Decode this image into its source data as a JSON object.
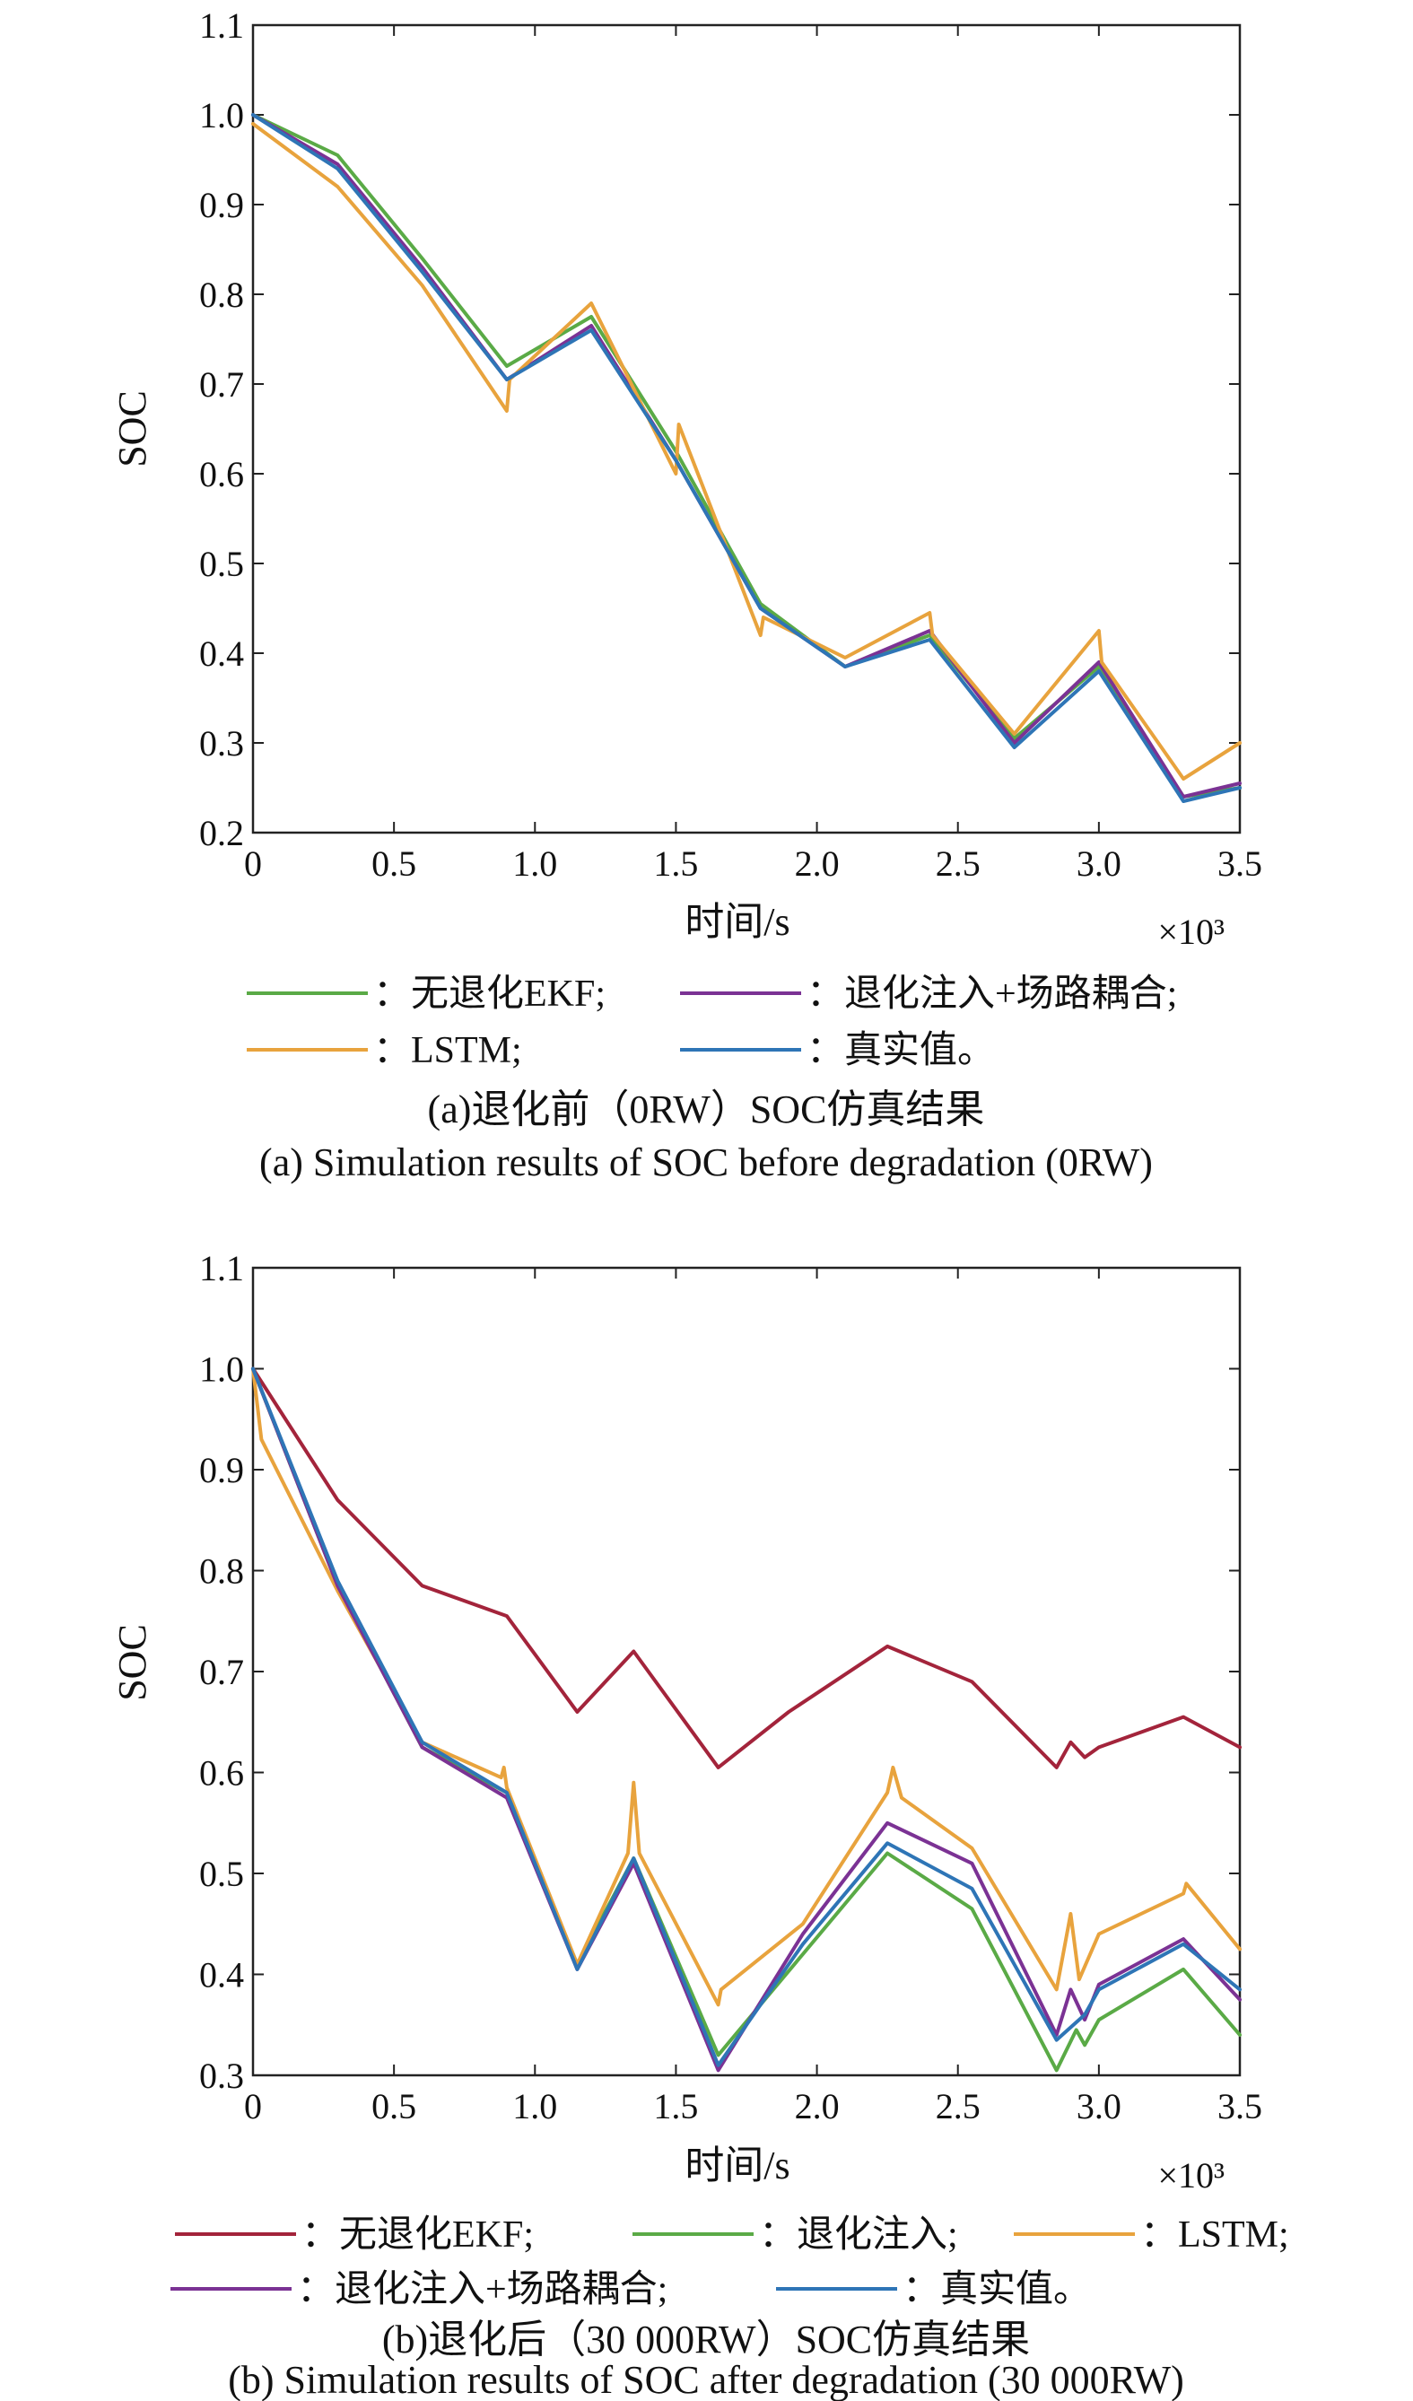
{
  "figures": [
    {
      "caption_cn": "(a)退化前（0RW）SOC仿真结果",
      "caption_en": "(a) Simulation results of SOC before degradation (0RW)",
      "legend": [
        {
          "swatch_color": "#5aaa46",
          "label": "：无退化EKF;"
        },
        {
          "swatch_color": "#7b3294",
          "label": "：退化注入+场路耦合;"
        },
        {
          "swatch_color": "#e8a33d",
          "label": "：LSTM;"
        },
        {
          "swatch_color": "#2e75b6",
          "label": "：真实值。"
        }
      ]
    },
    {
      "caption_cn": "(b)退化后（30 000RW）SOC仿真结果",
      "caption_en": "(b) Simulation results of SOC after degradation (30 000RW)",
      "legend": [
        {
          "swatch_color": "#a3243b",
          "label": "：无退化EKF;"
        },
        {
          "swatch_color": "#5aaa46",
          "label": "：退化注入;"
        },
        {
          "swatch_color": "#e8a33d",
          "label": "：LSTM;"
        },
        {
          "swatch_color": "#7b3294",
          "label": "：退化注入+场路耦合;"
        },
        {
          "swatch_color": "#2e75b6",
          "label": "：真实值。"
        }
      ]
    }
  ],
  "chart_data": [
    {
      "type": "line",
      "xlabel": "时间/s",
      "ylabel": "SOC",
      "x_multiplier_label": "×10³",
      "xlim": [
        0,
        3.5
      ],
      "ylim": [
        0.2,
        1.1
      ],
      "xticks": [
        "0",
        "0.5",
        "1.0",
        "1.5",
        "2.0",
        "2.5",
        "3.0",
        "3.5"
      ],
      "yticks": [
        "0.2",
        "0.3",
        "0.4",
        "0.5",
        "0.6",
        "0.7",
        "0.8",
        "0.9",
        "1.0",
        "1.1"
      ],
      "grid": false,
      "series": [
        {
          "color": "#5aaa46",
          "points": [
            [
              0,
              1.0
            ],
            [
              0.3,
              0.955
            ],
            [
              0.6,
              0.84
            ],
            [
              0.9,
              0.72
            ],
            [
              1.2,
              0.775
            ],
            [
              1.5,
              0.625
            ],
            [
              1.8,
              0.455
            ],
            [
              2.1,
              0.385
            ],
            [
              2.4,
              0.42
            ],
            [
              2.7,
              0.305
            ],
            [
              3.0,
              0.385
            ],
            [
              3.3,
              0.24
            ],
            [
              3.5,
              0.25
            ]
          ]
        },
        {
          "color": "#7b3294",
          "points": [
            [
              0,
              1.0
            ],
            [
              0.3,
              0.945
            ],
            [
              0.6,
              0.83
            ],
            [
              0.9,
              0.705
            ],
            [
              1.2,
              0.765
            ],
            [
              1.5,
              0.615
            ],
            [
              1.8,
              0.45
            ],
            [
              2.1,
              0.385
            ],
            [
              2.4,
              0.425
            ],
            [
              2.7,
              0.3
            ],
            [
              3.0,
              0.39
            ],
            [
              3.3,
              0.24
            ],
            [
              3.5,
              0.255
            ]
          ]
        },
        {
          "color": "#e8a33d",
          "points": [
            [
              0,
              0.99
            ],
            [
              0.3,
              0.92
            ],
            [
              0.6,
              0.81
            ],
            [
              0.9,
              0.67
            ],
            [
              0.91,
              0.705
            ],
            [
              1.2,
              0.79
            ],
            [
              1.5,
              0.6
            ],
            [
              1.51,
              0.655
            ],
            [
              1.8,
              0.42
            ],
            [
              1.81,
              0.44
            ],
            [
              2.1,
              0.395
            ],
            [
              2.4,
              0.445
            ],
            [
              2.41,
              0.42
            ],
            [
              2.7,
              0.31
            ],
            [
              3.0,
              0.425
            ],
            [
              3.01,
              0.39
            ],
            [
              3.3,
              0.26
            ],
            [
              3.5,
              0.3
            ]
          ]
        },
        {
          "color": "#2e75b6",
          "points": [
            [
              0,
              1.0
            ],
            [
              0.3,
              0.94
            ],
            [
              0.6,
              0.825
            ],
            [
              0.9,
              0.705
            ],
            [
              1.2,
              0.76
            ],
            [
              1.5,
              0.615
            ],
            [
              1.8,
              0.45
            ],
            [
              2.1,
              0.385
            ],
            [
              2.4,
              0.415
            ],
            [
              2.7,
              0.295
            ],
            [
              3.0,
              0.38
            ],
            [
              3.3,
              0.235
            ],
            [
              3.5,
              0.25
            ]
          ]
        }
      ]
    },
    {
      "type": "line",
      "xlabel": "时间/s",
      "ylabel": "SOC",
      "x_multiplier_label": "×10³",
      "xlim": [
        0,
        3.5
      ],
      "ylim": [
        0.3,
        1.1
      ],
      "xticks": [
        "0",
        "0.5",
        "1.0",
        "1.5",
        "2.0",
        "2.5",
        "3.0",
        "3.5"
      ],
      "yticks": [
        "0.3",
        "0.4",
        "0.5",
        "0.6",
        "0.7",
        "0.8",
        "0.9",
        "1.0",
        "1.1"
      ],
      "grid": false,
      "series": [
        {
          "color": "#a3243b",
          "points": [
            [
              0,
              1.0
            ],
            [
              0.3,
              0.87
            ],
            [
              0.6,
              0.785
            ],
            [
              0.9,
              0.755
            ],
            [
              1.15,
              0.66
            ],
            [
              1.35,
              0.72
            ],
            [
              1.65,
              0.605
            ],
            [
              1.9,
              0.66
            ],
            [
              2.25,
              0.725
            ],
            [
              2.55,
              0.69
            ],
            [
              2.85,
              0.605
            ],
            [
              2.9,
              0.63
            ],
            [
              2.95,
              0.615
            ],
            [
              3.0,
              0.625
            ],
            [
              3.3,
              0.655
            ],
            [
              3.5,
              0.625
            ]
          ]
        },
        {
          "color": "#5aaa46",
          "points": [
            [
              0,
              1.0
            ],
            [
              0.3,
              0.785
            ],
            [
              0.6,
              0.625
            ],
            [
              0.9,
              0.58
            ],
            [
              1.15,
              0.41
            ],
            [
              1.35,
              0.515
            ],
            [
              1.65,
              0.32
            ],
            [
              1.95,
              0.42
            ],
            [
              2.25,
              0.52
            ],
            [
              2.55,
              0.465
            ],
            [
              2.85,
              0.305
            ],
            [
              2.92,
              0.345
            ],
            [
              2.95,
              0.33
            ],
            [
              3.0,
              0.355
            ],
            [
              3.3,
              0.405
            ],
            [
              3.5,
              0.34
            ]
          ]
        },
        {
          "color": "#e8a33d",
          "points": [
            [
              0,
              1.0
            ],
            [
              0.03,
              0.93
            ],
            [
              0.3,
              0.78
            ],
            [
              0.6,
              0.63
            ],
            [
              0.88,
              0.595
            ],
            [
              0.89,
              0.605
            ],
            [
              0.9,
              0.585
            ],
            [
              1.15,
              0.41
            ],
            [
              1.33,
              0.52
            ],
            [
              1.35,
              0.59
            ],
            [
              1.37,
              0.52
            ],
            [
              1.65,
              0.37
            ],
            [
              1.66,
              0.385
            ],
            [
              1.95,
              0.45
            ],
            [
              2.25,
              0.58
            ],
            [
              2.27,
              0.605
            ],
            [
              2.3,
              0.575
            ],
            [
              2.55,
              0.525
            ],
            [
              2.85,
              0.385
            ],
            [
              2.9,
              0.46
            ],
            [
              2.93,
              0.395
            ],
            [
              3.0,
              0.44
            ],
            [
              3.3,
              0.48
            ],
            [
              3.31,
              0.49
            ],
            [
              3.5,
              0.425
            ]
          ]
        },
        {
          "color": "#7b3294",
          "points": [
            [
              0,
              1.0
            ],
            [
              0.3,
              0.785
            ],
            [
              0.6,
              0.625
            ],
            [
              0.9,
              0.575
            ],
            [
              1.15,
              0.405
            ],
            [
              1.35,
              0.51
            ],
            [
              1.65,
              0.305
            ],
            [
              1.95,
              0.44
            ],
            [
              2.25,
              0.55
            ],
            [
              2.55,
              0.51
            ],
            [
              2.85,
              0.34
            ],
            [
              2.9,
              0.385
            ],
            [
              2.95,
              0.355
            ],
            [
              3.0,
              0.39
            ],
            [
              3.3,
              0.435
            ],
            [
              3.5,
              0.375
            ]
          ]
        },
        {
          "color": "#2e75b6",
          "points": [
            [
              0,
              1.0
            ],
            [
              0.3,
              0.79
            ],
            [
              0.6,
              0.63
            ],
            [
              0.9,
              0.58
            ],
            [
              1.15,
              0.405
            ],
            [
              1.35,
              0.515
            ],
            [
              1.65,
              0.31
            ],
            [
              1.95,
              0.43
            ],
            [
              2.25,
              0.53
            ],
            [
              2.55,
              0.485
            ],
            [
              2.85,
              0.335
            ],
            [
              2.95,
              0.36
            ],
            [
              3.0,
              0.385
            ],
            [
              3.3,
              0.43
            ],
            [
              3.5,
              0.385
            ]
          ]
        }
      ]
    }
  ]
}
